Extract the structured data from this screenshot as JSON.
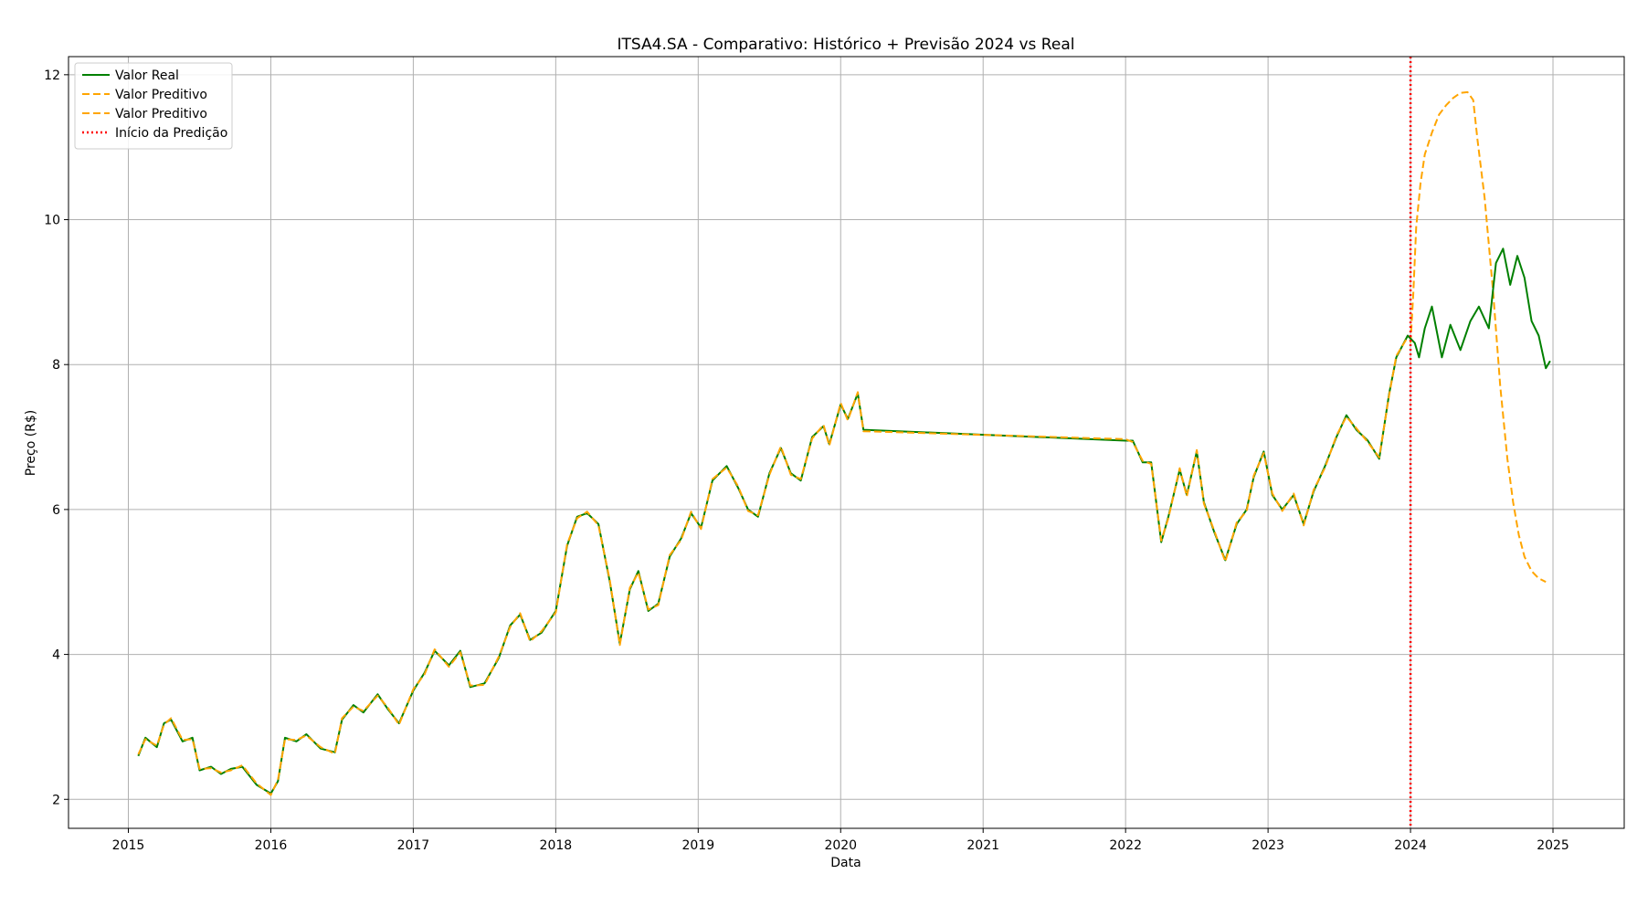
{
  "chart_data": {
    "type": "line",
    "title": "ITSA4.SA - Comparativo: Histórico + Previsão 2024 vs Real",
    "xlabel": "Data",
    "ylabel": "Preço (R$)",
    "xlim": [
      2014.58,
      2025.5
    ],
    "ylim": [
      1.6,
      12.25
    ],
    "xticks": [
      {
        "value": 2015,
        "label": "2015"
      },
      {
        "value": 2016,
        "label": "2016"
      },
      {
        "value": 2017,
        "label": "2017"
      },
      {
        "value": 2018,
        "label": "2018"
      },
      {
        "value": 2019,
        "label": "2019"
      },
      {
        "value": 2020,
        "label": "2020"
      },
      {
        "value": 2021,
        "label": "2021"
      },
      {
        "value": 2022,
        "label": "2022"
      },
      {
        "value": 2023,
        "label": "2023"
      },
      {
        "value": 2024,
        "label": "2024"
      },
      {
        "value": 2025,
        "label": "2025"
      }
    ],
    "yticks": [
      {
        "value": 2,
        "label": "2"
      },
      {
        "value": 4,
        "label": "4"
      },
      {
        "value": 6,
        "label": "6"
      },
      {
        "value": 8,
        "label": "8"
      },
      {
        "value": 10,
        "label": "10"
      },
      {
        "value": 12,
        "label": "12"
      }
    ],
    "grid": true,
    "legend_position": "top-left",
    "prediction_start": 2024.0,
    "series": [
      {
        "name": "Valor Real",
        "color": "#008000",
        "style": "solid",
        "x": [
          2015.07,
          2015.12,
          2015.2,
          2015.25,
          2015.3,
          2015.38,
          2015.45,
          2015.5,
          2015.58,
          2015.65,
          2015.72,
          2015.8,
          2015.9,
          2016.0,
          2016.05,
          2016.1,
          2016.18,
          2016.25,
          2016.35,
          2016.45,
          2016.5,
          2016.58,
          2016.65,
          2016.75,
          2016.82,
          2016.9,
          2017.0,
          2017.08,
          2017.15,
          2017.25,
          2017.33,
          2017.4,
          2017.5,
          2017.6,
          2017.68,
          2017.75,
          2017.82,
          2017.9,
          2018.0,
          2018.08,
          2018.15,
          2018.22,
          2018.3,
          2018.38,
          2018.45,
          2018.52,
          2018.58,
          2018.65,
          2018.72,
          2018.8,
          2018.88,
          2018.95,
          2019.02,
          2019.1,
          2019.2,
          2019.28,
          2019.35,
          2019.42,
          2019.5,
          2019.58,
          2019.65,
          2019.72,
          2019.8,
          2019.88,
          2019.92,
          2020.0,
          2020.05,
          2020.12,
          2020.16,
          2022.0,
          2022.05,
          2022.12,
          2022.18,
          2022.25,
          2022.3,
          2022.38,
          2022.43,
          2022.5,
          2022.55,
          2022.62,
          2022.7,
          2022.78,
          2022.85,
          2022.9,
          2022.97,
          2023.03,
          2023.1,
          2023.18,
          2023.25,
          2023.32,
          2023.4,
          2023.48,
          2023.55,
          2023.62,
          2023.7,
          2023.78,
          2023.85,
          2023.9,
          2023.98,
          2024.03,
          2024.06,
          2024.1,
          2024.15,
          2024.22,
          2024.28,
          2024.35,
          2024.42,
          2024.48,
          2024.55,
          2024.6,
          2024.65,
          2024.7,
          2024.75,
          2024.8,
          2024.85,
          2024.9,
          2024.95,
          2024.98
        ],
        "values": [
          2.6,
          2.85,
          2.72,
          3.05,
          3.1,
          2.8,
          2.85,
          2.4,
          2.45,
          2.35,
          2.42,
          2.45,
          2.2,
          2.08,
          2.25,
          2.85,
          2.8,
          2.9,
          2.7,
          2.65,
          3.1,
          3.3,
          3.2,
          3.45,
          3.25,
          3.05,
          3.5,
          3.75,
          4.05,
          3.85,
          4.05,
          3.55,
          3.6,
          3.95,
          4.4,
          4.55,
          4.2,
          4.3,
          4.6,
          5.5,
          5.9,
          5.95,
          5.8,
          5.0,
          4.15,
          4.9,
          5.15,
          4.6,
          4.7,
          5.35,
          5.6,
          5.95,
          5.75,
          6.4,
          6.6,
          6.3,
          6.0,
          5.9,
          6.5,
          6.85,
          6.5,
          6.4,
          7.0,
          7.15,
          6.9,
          7.45,
          7.25,
          7.6,
          7.1,
          6.95,
          6.95,
          6.65,
          6.65,
          5.55,
          5.9,
          6.55,
          6.2,
          6.8,
          6.1,
          5.7,
          5.3,
          5.8,
          6.0,
          6.45,
          6.8,
          6.2,
          6.0,
          6.2,
          5.8,
          6.25,
          6.6,
          7.0,
          7.3,
          7.1,
          6.95,
          6.7,
          7.6,
          8.1,
          8.4,
          8.3,
          8.1,
          8.5,
          8.8,
          8.1,
          8.55,
          8.2,
          8.6,
          8.8,
          8.5,
          9.4,
          9.6,
          9.1,
          9.5,
          9.2,
          8.6,
          8.4,
          7.95,
          8.05
        ]
      },
      {
        "name": "Valor Preditivo",
        "color": "#FFA500",
        "style": "dashed",
        "x": [
          2015.07,
          2015.12,
          2015.2,
          2015.25,
          2015.3,
          2015.38,
          2015.45,
          2015.5,
          2015.58,
          2015.65,
          2015.72,
          2015.8,
          2015.9,
          2016.0,
          2016.05,
          2016.1,
          2016.18,
          2016.25,
          2016.35,
          2016.45,
          2016.5,
          2016.58,
          2016.65,
          2016.75,
          2016.82,
          2016.9,
          2017.0,
          2017.08,
          2017.15,
          2017.25,
          2017.33,
          2017.4,
          2017.5,
          2017.6,
          2017.68,
          2017.75,
          2017.82,
          2017.9,
          2018.0,
          2018.08,
          2018.15,
          2018.22,
          2018.3,
          2018.38,
          2018.45,
          2018.52,
          2018.58,
          2018.65,
          2018.72,
          2018.8,
          2018.88,
          2018.95,
          2019.02,
          2019.1,
          2019.2,
          2019.28,
          2019.35,
          2019.42,
          2019.5,
          2019.58,
          2019.65,
          2019.72,
          2019.8,
          2019.88,
          2019.92,
          2020.0,
          2020.05,
          2020.12,
          2020.16,
          2022.0,
          2022.05,
          2022.12,
          2022.18,
          2022.25,
          2022.3,
          2022.38,
          2022.43,
          2022.5,
          2022.55,
          2022.62,
          2022.7,
          2022.78,
          2022.85,
          2022.9,
          2022.97,
          2023.03,
          2023.1,
          2023.18,
          2023.25,
          2023.32,
          2023.4,
          2023.48,
          2023.55,
          2023.62,
          2023.7,
          2023.78,
          2023.85,
          2023.9,
          2023.98
        ],
        "values": [
          2.62,
          2.83,
          2.74,
          3.03,
          3.12,
          2.82,
          2.83,
          2.42,
          2.43,
          2.37,
          2.4,
          2.47,
          2.22,
          2.06,
          2.27,
          2.83,
          2.82,
          2.88,
          2.72,
          2.63,
          3.12,
          3.28,
          3.22,
          3.43,
          3.27,
          3.03,
          3.52,
          3.73,
          4.07,
          3.83,
          4.03,
          3.57,
          3.58,
          3.97,
          4.38,
          4.57,
          4.18,
          4.32,
          4.58,
          5.52,
          5.88,
          5.97,
          5.78,
          5.02,
          4.13,
          4.92,
          5.13,
          4.62,
          4.68,
          5.37,
          5.58,
          5.97,
          5.73,
          6.42,
          6.58,
          6.32,
          5.98,
          5.92,
          6.48,
          6.87,
          6.48,
          6.42,
          6.98,
          7.17,
          6.88,
          7.47,
          7.23,
          7.62,
          7.08,
          6.97,
          6.93,
          6.67,
          6.63,
          5.57,
          5.88,
          6.57,
          6.18,
          6.82,
          6.08,
          5.72,
          5.28,
          5.82,
          5.98,
          6.47,
          6.78,
          6.22,
          5.98,
          6.22,
          5.78,
          6.27,
          6.58,
          7.02,
          7.28,
          7.12,
          6.93,
          6.72,
          7.58,
          8.12,
          8.38
        ]
      },
      {
        "name": "Valor Preditivo",
        "color": "#FFA500",
        "style": "dashed",
        "x": [
          2024.0,
          2024.02,
          2024.04,
          2024.07,
          2024.1,
          2024.15,
          2024.2,
          2024.25,
          2024.3,
          2024.35,
          2024.4,
          2024.44,
          2024.47,
          2024.52,
          2024.58,
          2024.63,
          2024.68,
          2024.72,
          2024.76,
          2024.8,
          2024.85,
          2024.9,
          2024.95
        ],
        "values": [
          8.3,
          9.0,
          9.9,
          10.5,
          10.9,
          11.2,
          11.45,
          11.58,
          11.68,
          11.75,
          11.76,
          11.65,
          11.1,
          10.3,
          9.0,
          7.7,
          6.7,
          6.1,
          5.65,
          5.35,
          5.15,
          5.05,
          5.0
        ]
      }
    ],
    "legend": [
      {
        "label": "Valor Real",
        "color": "#008000",
        "style": "solid"
      },
      {
        "label": "Valor Preditivo",
        "color": "#FFA500",
        "style": "dashed"
      },
      {
        "label": "Valor Preditivo",
        "color": "#FFA500",
        "style": "dashed"
      },
      {
        "label": "Início da Predição",
        "color": "#FF0000",
        "style": "dotted"
      }
    ]
  }
}
